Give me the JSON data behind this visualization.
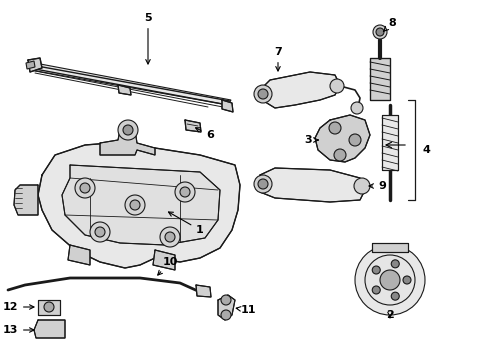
{
  "bg_color": "#ffffff",
  "fig_width": 4.9,
  "fig_height": 3.6,
  "dpi": 100,
  "line_color": "#1a1a1a",
  "fill_light": "#e8e8e8",
  "fill_mid": "#d0d0d0"
}
